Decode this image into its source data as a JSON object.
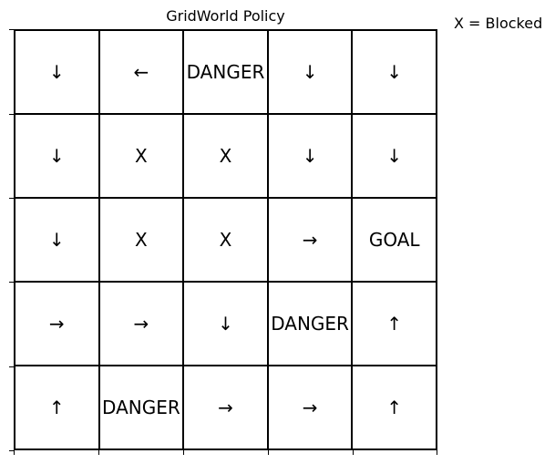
{
  "title": "GridWorld Policy",
  "legend": "X = Blocked",
  "grid": [
    [
      "↓",
      "←",
      "DANGER",
      "↓",
      "↓"
    ],
    [
      "↓",
      "X",
      "X",
      "↓",
      "↓"
    ],
    [
      "↓",
      "X",
      "X",
      "→",
      "GOAL"
    ],
    [
      "→",
      "→",
      "↓",
      "DANGER",
      "↑"
    ],
    [
      "↑",
      "DANGER",
      "→",
      "→",
      "↑"
    ]
  ]
}
